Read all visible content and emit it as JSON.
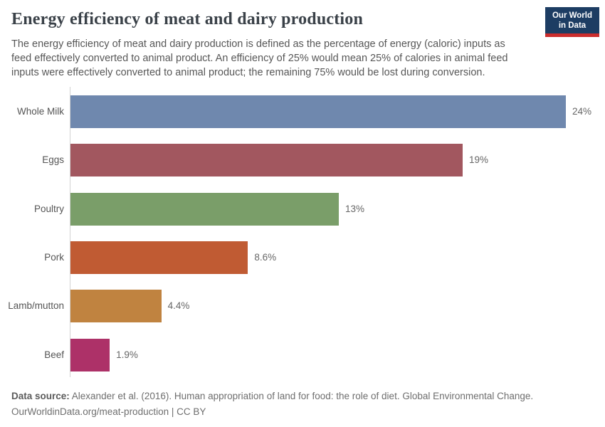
{
  "header": {
    "title": "Energy efficiency of meat and dairy production",
    "subtitle_lines": [
      "The energy efficiency of meat and dairy production is defined as the percentage of energy (caloric) inputs as",
      "feed effectively converted to animal product. An efficiency of 25% would mean 25% of calories in animal feed",
      "inputs were effectively converted to animal product; the remaining 75% would be lost during conversion."
    ],
    "logo": {
      "line1": "Our World",
      "line2": "in Data",
      "bg_color": "#1d3d63",
      "accent_color": "#cb2d2d"
    }
  },
  "chart_data": {
    "type": "bar",
    "orientation": "horizontal",
    "title": "Energy efficiency of meat and dairy production",
    "categories": [
      "Whole Milk",
      "Eggs",
      "Poultry",
      "Pork",
      "Lamb/mutton",
      "Beef"
    ],
    "values": [
      24,
      19,
      13,
      8.6,
      4.4,
      1.9
    ],
    "value_labels": [
      "24%",
      "19%",
      "13%",
      "8.6%",
      "4.4%",
      "1.9%"
    ],
    "bar_colors": [
      "#6f88ae",
      "#a2575f",
      "#7a9e69",
      "#c05b33",
      "#c08340",
      "#ad3168"
    ],
    "xlabel": "",
    "ylabel": "",
    "xlim": [
      0,
      24
    ],
    "grid": false,
    "legend": false,
    "axis_color": "#d3d3d3"
  },
  "footer": {
    "source_label": "Data source:",
    "source_text": " Alexander et al. (2016). Human appropriation of land for food: the role of diet. Global Environmental Change.",
    "license_text": "OurWorldinData.org/meat-production | CC BY"
  }
}
